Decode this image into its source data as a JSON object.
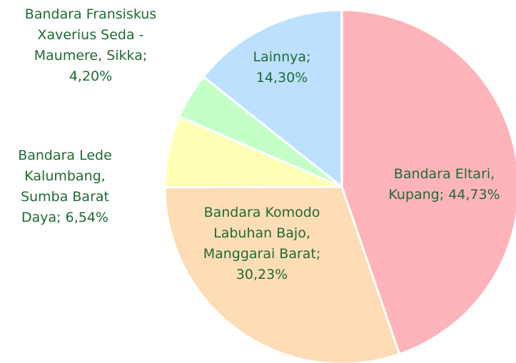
{
  "chart_data": {
    "type": "pie",
    "categories": [
      "Bandara Eltari, Kupang",
      "Bandara Komodo Labuhan Bajo, Manggarai Barat",
      "Bandara Lede Kalumbang, Sumba Barat Daya",
      "Bandara Fransiskus Xaverius Seda - Maumere, Sikka",
      "Lainnya"
    ],
    "values": [
      44.73,
      30.23,
      6.54,
      4.2,
      14.3
    ],
    "value_labels": [
      "44,73%",
      "30,23%",
      "6,54%",
      "4,20%",
      "14,30%"
    ],
    "colors": [
      "#ffb3ba",
      "#fddcb6",
      "#ffffb5",
      "#c4ffc8",
      "#bde0fe"
    ],
    "label_color": "#1f6b33"
  }
}
